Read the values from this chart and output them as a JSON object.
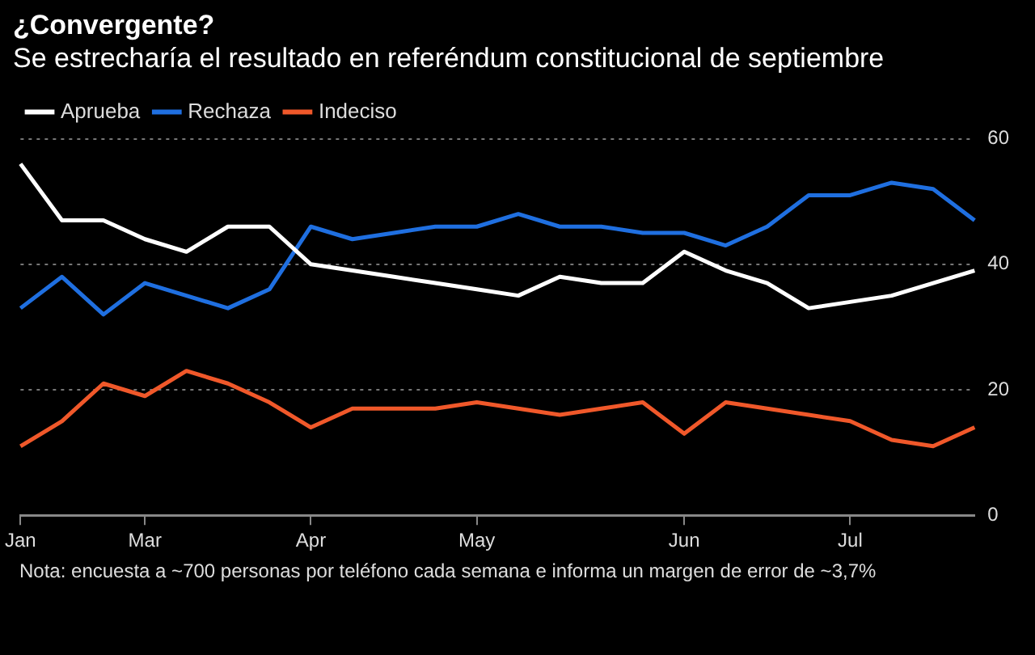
{
  "chart_data": {
    "type": "line",
    "title": "¿Convergente?",
    "subtitle": "Se estrecharía el resultado en referéndum constitucional de septiembre",
    "categories": [
      "Jan",
      null,
      null,
      "Mar",
      null,
      null,
      null,
      "Apr",
      null,
      null,
      null,
      "May",
      null,
      null,
      null,
      null,
      "Jun",
      null,
      null,
      null,
      "Jul",
      null,
      null,
      null
    ],
    "series": [
      {
        "name": "Aprueba",
        "color": "#ffffff",
        "values": [
          56,
          47,
          47,
          44,
          42,
          46,
          46,
          40,
          39,
          38,
          37,
          36,
          35,
          38,
          37,
          37,
          42,
          39,
          37,
          33,
          34,
          35,
          37,
          39
        ]
      },
      {
        "name": "Rechaza",
        "color": "#1f6fe0",
        "values": [
          33,
          38,
          32,
          37,
          35,
          33,
          36,
          46,
          44,
          45,
          46,
          46,
          48,
          46,
          46,
          45,
          45,
          43,
          46,
          51,
          51,
          53,
          52,
          47
        ]
      },
      {
        "name": "Indeciso",
        "color": "#f0582a",
        "values": [
          11,
          15,
          21,
          19,
          23,
          21,
          18,
          14,
          17,
          17,
          17,
          18,
          17,
          16,
          17,
          18,
          13,
          18,
          17,
          16,
          15,
          12,
          11,
          14
        ]
      }
    ],
    "ylim": [
      0,
      60
    ],
    "yticks": [
      0,
      20,
      40,
      60
    ],
    "grid": "y",
    "legend": "top left",
    "marker": "none",
    "line_style": "solid",
    "annotations": [
      "Nota: encuesta a ~700 personas por teléfono cada semana e informa un margen de error de ~3,7%"
    ]
  }
}
